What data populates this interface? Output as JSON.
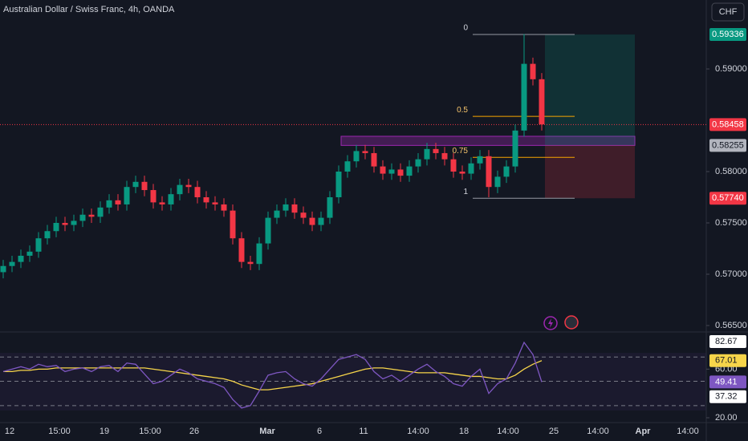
{
  "header": {
    "title": "Australian Dollar / Swiss Franc, 4h, OANDA",
    "currency": "CHF"
  },
  "chart_data": {
    "type": "candlestick",
    "open": [
      0.5702,
      0.5708,
      0.5712,
      0.5718,
      0.5722,
      0.5735,
      0.5742,
      0.575,
      0.5748,
      0.5752,
      0.5758,
      0.5756,
      0.5765,
      0.5772,
      0.5768,
      0.5785,
      0.579,
      0.5782,
      0.577,
      0.5768,
      0.5778,
      0.5787,
      0.5785,
      0.5775,
      0.577,
      0.5768,
      0.5762,
      0.5735,
      0.5712,
      0.571,
      0.573,
      0.5755,
      0.5762,
      0.5768,
      0.576,
      0.5755,
      0.5748,
      0.5755,
      0.5775,
      0.58,
      0.581,
      0.582,
      0.5818,
      0.5805,
      0.5798,
      0.5802,
      0.5796,
      0.5805,
      0.5812,
      0.5822,
      0.5818,
      0.5812,
      0.58,
      0.5798,
      0.5808,
      0.5815,
      0.5785,
      0.5795,
      0.5805,
      0.584,
      0.5905,
      0.589
    ],
    "high": [
      0.5714,
      0.5718,
      0.5724,
      0.5728,
      0.5741,
      0.5748,
      0.5756,
      0.5756,
      0.5758,
      0.5764,
      0.5764,
      0.5771,
      0.5778,
      0.5778,
      0.5791,
      0.5796,
      0.5796,
      0.5788,
      0.5776,
      0.5784,
      0.5793,
      0.5793,
      0.5791,
      0.5781,
      0.5776,
      0.5774,
      0.5768,
      0.5741,
      0.5718,
      0.5736,
      0.5761,
      0.5768,
      0.5774,
      0.5774,
      0.5766,
      0.5761,
      0.5761,
      0.5781,
      0.5806,
      0.5816,
      0.5826,
      0.5826,
      0.5824,
      0.5811,
      0.5808,
      0.5808,
      0.5811,
      0.5818,
      0.5828,
      0.5828,
      0.5824,
      0.5818,
      0.5806,
      0.5814,
      0.5821,
      0.5821,
      0.5801,
      0.5811,
      0.5846,
      0.5934,
      0.5911,
      0.5896
    ],
    "low": [
      0.5696,
      0.5702,
      0.5706,
      0.5712,
      0.5716,
      0.5729,
      0.5736,
      0.5742,
      0.5742,
      0.5746,
      0.575,
      0.575,
      0.5759,
      0.5762,
      0.5762,
      0.5779,
      0.5776,
      0.5764,
      0.5762,
      0.5762,
      0.5772,
      0.5779,
      0.5769,
      0.5764,
      0.5762,
      0.5756,
      0.5729,
      0.5706,
      0.5704,
      0.5704,
      0.5724,
      0.5749,
      0.5756,
      0.5754,
      0.5749,
      0.5742,
      0.5742,
      0.5749,
      0.5769,
      0.5794,
      0.5804,
      0.5812,
      0.5799,
      0.5792,
      0.5792,
      0.579,
      0.579,
      0.5799,
      0.5806,
      0.5812,
      0.5806,
      0.5794,
      0.5792,
      0.5792,
      0.5802,
      0.5775,
      0.5779,
      0.5789,
      0.5799,
      0.5834,
      0.5884,
      0.584
    ],
    "close": [
      0.5708,
      0.5712,
      0.5718,
      0.5722,
      0.5735,
      0.5742,
      0.575,
      0.5748,
      0.5752,
      0.5758,
      0.5756,
      0.5765,
      0.5772,
      0.5768,
      0.5785,
      0.579,
      0.5782,
      0.577,
      0.5768,
      0.5778,
      0.5787,
      0.5785,
      0.5775,
      0.577,
      0.5768,
      0.5762,
      0.5735,
      0.5712,
      0.571,
      0.573,
      0.5755,
      0.5762,
      0.5768,
      0.576,
      0.5755,
      0.5748,
      0.5755,
      0.5775,
      0.58,
      0.581,
      0.582,
      0.5818,
      0.5805,
      0.5798,
      0.5802,
      0.5796,
      0.5805,
      0.5812,
      0.5822,
      0.5818,
      0.5812,
      0.58,
      0.5798,
      0.5808,
      0.5815,
      0.5785,
      0.5795,
      0.5805,
      0.584,
      0.5905,
      0.589,
      0.5846
    ],
    "ylim": [
      0.56453,
      0.59672
    ],
    "yticks": [
      {
        "value": 0.565,
        "label": "0.56500"
      },
      {
        "value": 0.57,
        "label": "0.57000"
      },
      {
        "value": 0.575,
        "label": "0.57500"
      },
      {
        "value": 0.58,
        "label": "0.58000"
      },
      {
        "value": 0.59,
        "label": "0.59000"
      }
    ],
    "x_labels": [
      "12",
      "15:00",
      "19",
      "15:00",
      "26",
      "Mar",
      "6",
      "11",
      "14:00",
      "18",
      "14:00",
      "25",
      "14:00",
      "Apr",
      "14:00"
    ],
    "price_labels": [
      {
        "value": 0.59336,
        "label": "0.59336"
      },
      {
        "value": 0.58458,
        "label": "0.58458"
      },
      {
        "value": 0.58255,
        "label": "0.58255"
      },
      {
        "value": 0.5774,
        "label": "0.57740"
      }
    ],
    "zone": [
      0.58255,
      0.58344
    ],
    "fib": {
      "top": 0.59336,
      "bottom": 0.5774,
      "levels": [
        0,
        0.5,
        0.75,
        1
      ]
    },
    "rsi": {
      "values": [
        58,
        60,
        62,
        60,
        64,
        62,
        63,
        58,
        60,
        61,
        58,
        62,
        63,
        58,
        65,
        64,
        56,
        48,
        50,
        55,
        60,
        57,
        52,
        50,
        48,
        45,
        35,
        28,
        30,
        42,
        55,
        57,
        58,
        52,
        48,
        46,
        52,
        60,
        68,
        70,
        72,
        68,
        58,
        52,
        55,
        50,
        55,
        60,
        64,
        58,
        54,
        48,
        46,
        54,
        60,
        40,
        48,
        52,
        65,
        82,
        72,
        49.41
      ],
      "ma": [
        58,
        58,
        59,
        59,
        60,
        60,
        61,
        61,
        61,
        61,
        61,
        61,
        61,
        61,
        61,
        61,
        61,
        60,
        59,
        58,
        57,
        56,
        55,
        54,
        53,
        52,
        50,
        47,
        45,
        43,
        43,
        44,
        45,
        46,
        47,
        48,
        50,
        52,
        54,
        56,
        58,
        60,
        61,
        61,
        60,
        59,
        58,
        57,
        57,
        57,
        57,
        56,
        55,
        54,
        54,
        53,
        52,
        52,
        55,
        60,
        64,
        67.01
      ],
      "ylim": [
        17.36,
        89.92
      ],
      "bands": [
        30,
        50,
        70
      ],
      "yticks": [
        {
          "value": 82.67,
          "label": "82.67"
        },
        {
          "value": 60,
          "label": "60.00"
        },
        {
          "value": 37.32,
          "label": "37.32"
        },
        {
          "value": 20,
          "label": "20.00"
        }
      ]
    }
  }
}
